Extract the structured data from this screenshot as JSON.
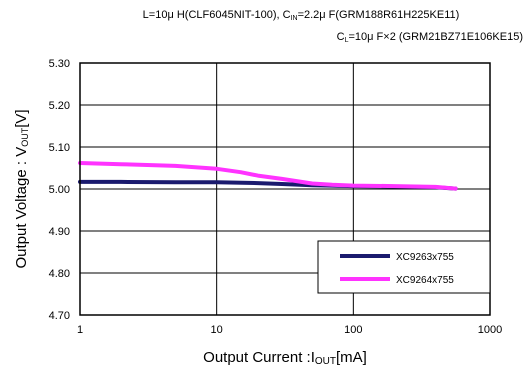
{
  "header": {
    "line1": "L=10μ H(CLF6045NIT-100), C<sub>IN</sub>=2.2μ F(GRM188R61H225KE11)",
    "line2": "C<sub>L</sub>=10μ F×2 (GRM21BZ71E106KE15)"
  },
  "chart_data": {
    "type": "line",
    "xscale": "log",
    "xlim": [
      1,
      1000
    ],
    "ylim": [
      4.7,
      5.3
    ],
    "xticks": [
      "1",
      "10",
      "100",
      "1000"
    ],
    "yticks": [
      "4.70",
      "4.80",
      "4.90",
      "5.00",
      "5.10",
      "5.20",
      "5.30"
    ],
    "xlabel": "Output Current :I<sub>OUT</sub>[mA]",
    "ylabel": "Output Voltage : V<sub>OUT</sub>[V]",
    "grid": true,
    "legend_position": "bottom-right",
    "series": [
      {
        "name": "XC9263x755",
        "color": "#1a1a6e",
        "x": [
          1,
          2,
          5,
          10,
          20,
          30,
          50,
          70,
          100,
          200,
          400,
          560
        ],
        "y": [
          5.017,
          5.017,
          5.016,
          5.016,
          5.014,
          5.012,
          5.009,
          5.008,
          5.007,
          5.006,
          5.004,
          5.001
        ]
      },
      {
        "name": "XC9264x755",
        "color": "#ff33ff",
        "x": [
          1,
          2,
          5,
          10,
          15,
          20,
          30,
          50,
          70,
          100,
          200,
          400,
          560
        ],
        "y": [
          5.062,
          5.059,
          5.055,
          5.048,
          5.04,
          5.032,
          5.024,
          5.013,
          5.01,
          5.008,
          5.007,
          5.005,
          5.001
        ]
      }
    ]
  }
}
